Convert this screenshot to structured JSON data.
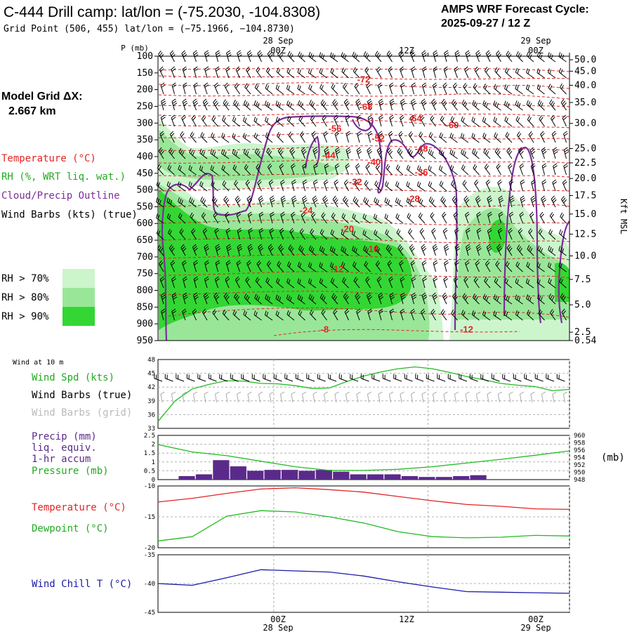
{
  "header": {
    "title": "C-444 Drill camp:  lat/lon = (-75.2030, -104.8308)",
    "subtitle": "Grid Point (506, 455) lat/lon = (−75.1966, −104.8730)",
    "cycle_label": "AMPS WRF Forecast Cycle:",
    "cycle_value": "2025-09-27 / 12  Z"
  },
  "left_legend": {
    "grid_label": "Model Grid ΔX:",
    "grid_value": "2.667 km",
    "temperature": "Temperature (°C)",
    "rh": "RH (%, WRT liq. wat.)",
    "cloud": "Cloud/Precip Outline",
    "wind": "Wind Barbs (kts) (true)",
    "rh70": "RH > 70%",
    "rh80": "RH > 80%",
    "rh90": "RH > 90%"
  },
  "colors": {
    "temperature": "#e32424",
    "rh": "#22bb22",
    "cloud": "#7a2d9a",
    "wind_chill": "#1a1aa8",
    "precip": "#5a2a8a",
    "rh70": "#ccf5cc",
    "rh80": "#99e699",
    "rh90": "#33d633"
  },
  "time_axis": {
    "top_dates": [
      "28 Sep",
      "29 Sep"
    ],
    "top_hours": [
      "00Z",
      "12Z",
      "00Z"
    ],
    "bottom_hours": [
      "00Z",
      "12Z",
      "00Z"
    ],
    "bottom_dates": [
      "28 Sep",
      "29 Sep"
    ]
  },
  "panels": {
    "wind10m_title": "Wind at 10 m",
    "wind_spd": "Wind Spd (kts)",
    "wind_barbs_true": "Wind Barbs (true)",
    "wind_barbs_grid": "Wind Barbs (grid)",
    "precip": "Precip (mm)",
    "liq": "liq. equiv.",
    "accum": "1-hr accum",
    "pressure": "Pressure (mb)",
    "mb_unit": "(mb)",
    "temp": "Temperature (°C)",
    "dew": "Dewpoint (°C)",
    "chill": "Wind Chill T (°C)"
  },
  "chart_data": [
    {
      "type": "heatmap",
      "name": "cross-section",
      "ylabel_left": "P (mb)",
      "ylabel_right": "Kft MSL",
      "pressure_ticks": [
        "100",
        "150",
        "200",
        "250",
        "300",
        "350",
        "400",
        "450",
        "500",
        "550",
        "600",
        "650",
        "700",
        "750",
        "800",
        "850",
        "900",
        "950"
      ],
      "height_ticks": [
        "50.0",
        "45.0",
        "40.0",
        "35.0",
        "30.0",
        "25.0",
        "22.5",
        "20.0",
        "17.5",
        "15.0",
        "12.5",
        "10.0",
        "7.5",
        "5.0",
        "2.5",
        "0.54"
      ],
      "temperature_labels": [
        {
          "text": "-72",
          "t": 10.0,
          "p": 168
        },
        {
          "text": "-68",
          "t": 10.1,
          "p": 250
        },
        {
          "text": "-64",
          "t": 12.5,
          "p": 285
        },
        {
          "text": "-60",
          "t": 14.3,
          "p": 305
        },
        {
          "text": "-56",
          "t": 8.6,
          "p": 315
        },
        {
          "text": "-52",
          "t": 10.7,
          "p": 345
        },
        {
          "text": "-48",
          "t": 12.8,
          "p": 375
        },
        {
          "text": "-44",
          "t": 8.3,
          "p": 395
        },
        {
          "text": "-40",
          "t": 10.5,
          "p": 415
        },
        {
          "text": "-36",
          "t": 12.8,
          "p": 445
        },
        {
          "text": "-32",
          "t": 9.6,
          "p": 475
        },
        {
          "text": "-28",
          "t": 12.4,
          "p": 525
        },
        {
          "text": "-24",
          "t": 7.2,
          "p": 560
        },
        {
          "text": "-20",
          "t": 9.2,
          "p": 615
        },
        {
          "text": "-16",
          "t": 10.4,
          "p": 675
        },
        {
          "text": "-12",
          "t": 8.7,
          "p": 735
        },
        {
          "text": "-8",
          "t": 8.1,
          "p": 915
        },
        {
          "text": "-12",
          "t": 15.0,
          "p": 915
        }
      ]
    },
    {
      "type": "line",
      "name": "wind_speed_10m",
      "ylim": [
        33,
        48
      ],
      "yticks": [
        33,
        36,
        39,
        42,
        45,
        48
      ],
      "x": [
        0,
        1,
        2,
        3,
        4,
        5,
        6,
        7,
        8,
        9,
        10,
        11,
        12,
        13,
        14,
        15,
        16,
        17,
        18,
        19,
        20,
        21,
        22,
        23,
        24
      ],
      "values": [
        34.5,
        39.0,
        41.6,
        42.6,
        43.4,
        43.3,
        42.8,
        42.7,
        42.3,
        41.7,
        41.8,
        43.2,
        44.4,
        45.3,
        46.0,
        46.4,
        46.0,
        45.2,
        44.3,
        43.6,
        42.8,
        42.4,
        42.1,
        41.2,
        41.5
      ]
    },
    {
      "type": "bar",
      "name": "precip_1hr",
      "ylim": [
        0,
        2.5
      ],
      "yticks": [
        0.0,
        0.5,
        1.0,
        1.5,
        2.0,
        2.5
      ],
      "x": [
        1,
        2,
        3,
        4,
        5,
        6,
        7,
        8,
        9,
        10,
        11,
        12,
        13,
        14,
        15,
        16,
        17,
        18
      ],
      "values": [
        0.2,
        0.3,
        1.1,
        0.75,
        0.5,
        0.55,
        0.55,
        0.5,
        0.55,
        0.45,
        0.3,
        0.3,
        0.3,
        0.2,
        0.15,
        0.15,
        0.2,
        0.25
      ]
    },
    {
      "type": "line",
      "name": "pressure",
      "ylim": [
        948,
        960
      ],
      "yticks": [
        948,
        950,
        952,
        954,
        956,
        958,
        960
      ],
      "x": [
        0,
        2,
        4,
        6,
        8,
        10,
        12,
        14,
        16,
        18,
        20,
        22,
        24
      ],
      "values": [
        957.5,
        955.5,
        954.5,
        953.0,
        951.5,
        950.5,
        950.5,
        950.8,
        951.5,
        952.5,
        953.5,
        954.6,
        955.8
      ]
    },
    {
      "type": "line",
      "name": "temp_dew",
      "ylim": [
        -20,
        -10
      ],
      "yticks": [
        -20,
        -15,
        -10
      ],
      "series": [
        {
          "name": "Temperature",
          "x": [
            0,
            2,
            4,
            6,
            8,
            10,
            12,
            14,
            16,
            18,
            20,
            22,
            24
          ],
          "values": [
            -12.6,
            -12.0,
            -11.2,
            -10.5,
            -10.3,
            -10.6,
            -11.0,
            -11.7,
            -12.4,
            -13.0,
            -13.3,
            -13.7,
            -13.8
          ]
        },
        {
          "name": "Dewpoint",
          "x": [
            0,
            2,
            4,
            6,
            8,
            10,
            12,
            14,
            16,
            18,
            20,
            22,
            24
          ],
          "values": [
            -18.9,
            -18.2,
            -14.9,
            -14.0,
            -14.2,
            -15.0,
            -16.0,
            -17.4,
            -18.2,
            -18.4,
            -18.3,
            -18.0,
            -18.1
          ]
        }
      ]
    },
    {
      "type": "line",
      "name": "wind_chill",
      "ylim": [
        -45,
        -35
      ],
      "yticks": [
        -45,
        -40,
        -35
      ],
      "x": [
        0,
        2,
        4,
        6,
        8,
        10,
        12,
        14,
        16,
        18,
        20,
        22,
        24
      ],
      "values": [
        -40.0,
        -40.3,
        -39.0,
        -37.6,
        -37.8,
        -38.0,
        -38.7,
        -39.7,
        -40.6,
        -41.4,
        -41.5,
        -41.6,
        -41.7
      ]
    }
  ]
}
